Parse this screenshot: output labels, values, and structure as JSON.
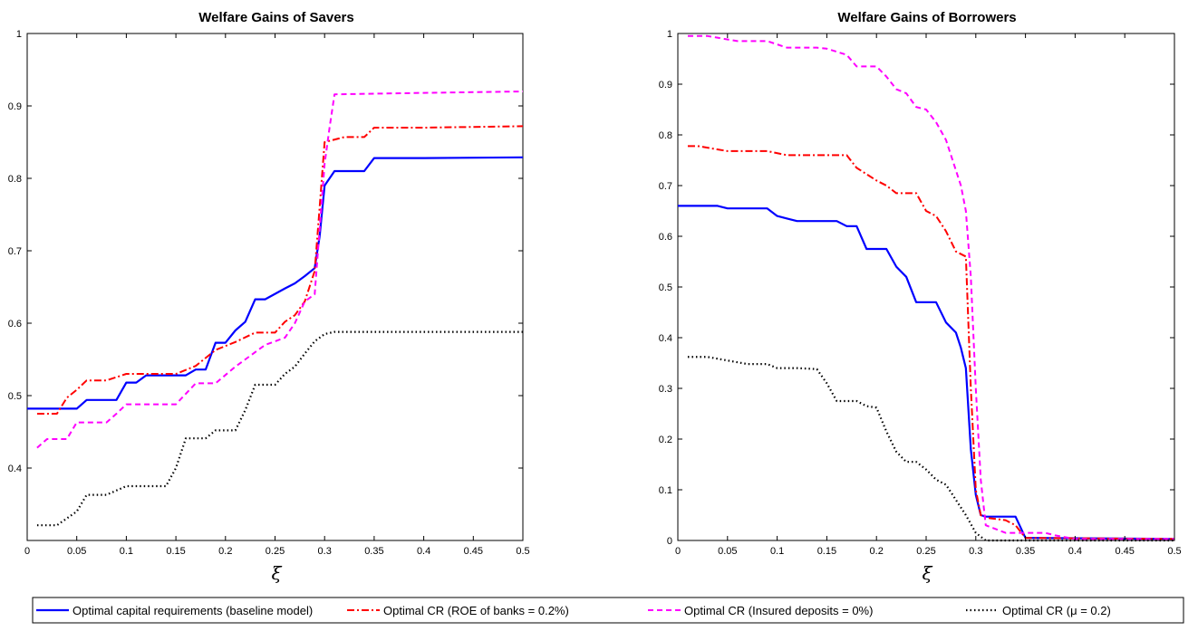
{
  "legend": [
    {
      "label": "Optimal capital requirements (baseline model)",
      "color": "#0000ff",
      "dash": "solid"
    },
    {
      "label": "Optimal CR (ROE of banks = 0.2%)",
      "color": "#ff0000",
      "dash": "dashdot"
    },
    {
      "label": "Optimal CR (Insured deposits = 0%)",
      "color": "#ff00ff",
      "dash": "dashed"
    },
    {
      "label": "Optimal CR (μ = 0.2)",
      "color": "#000000",
      "dash": "dotted"
    }
  ],
  "chart_data": [
    {
      "type": "line",
      "title": "Welfare Gains of Savers",
      "xlabel": "ξ",
      "ylabel": "",
      "xlim": [
        0,
        0.5
      ],
      "ylim": [
        0.3,
        1.0
      ],
      "xticks": [
        "0",
        "0.05",
        "0.1",
        "0.15",
        "0.2",
        "0.25",
        "0.3",
        "0.35",
        "0.4",
        "0.45",
        "0.5"
      ],
      "yticks": [
        "0.4",
        "0.5",
        "0.6",
        "0.7",
        "0.8",
        "0.9",
        "1"
      ],
      "grid": false,
      "series": [
        {
          "name": "Optimal capital requirements (baseline model)",
          "color": "#0000ff",
          "dash": "solid",
          "width": 2.2,
          "x": [
            0,
            0.05,
            0.06,
            0.09,
            0.1,
            0.11,
            0.12,
            0.16,
            0.17,
            0.18,
            0.19,
            0.2,
            0.21,
            0.22,
            0.23,
            0.24,
            0.26,
            0.27,
            0.28,
            0.29,
            0.295,
            0.3,
            0.31,
            0.34,
            0.35,
            0.4,
            0.5
          ],
          "y": [
            0.482,
            0.482,
            0.494,
            0.494,
            0.518,
            0.518,
            0.528,
            0.528,
            0.536,
            0.536,
            0.573,
            0.573,
            0.59,
            0.602,
            0.633,
            0.633,
            0.648,
            0.655,
            0.665,
            0.676,
            0.72,
            0.79,
            0.81,
            0.81,
            0.828,
            0.828,
            0.829
          ]
        },
        {
          "name": "Optimal CR (ROE of banks = 0.2%)",
          "color": "#ff0000",
          "dash": "dashdot",
          "width": 2.0,
          "x": [
            0.01,
            0.03,
            0.04,
            0.05,
            0.06,
            0.08,
            0.1,
            0.12,
            0.15,
            0.17,
            0.19,
            0.21,
            0.23,
            0.25,
            0.26,
            0.27,
            0.28,
            0.29,
            0.295,
            0.3,
            0.32,
            0.34,
            0.35,
            0.4,
            0.5
          ],
          "y": [
            0.475,
            0.475,
            0.497,
            0.508,
            0.521,
            0.521,
            0.53,
            0.53,
            0.53,
            0.541,
            0.563,
            0.574,
            0.587,
            0.587,
            0.602,
            0.611,
            0.63,
            0.672,
            0.76,
            0.85,
            0.857,
            0.857,
            0.87,
            0.87,
            0.872
          ]
        },
        {
          "name": "Optimal CR (Insured deposits = 0%)",
          "color": "#ff00ff",
          "dash": "dashed",
          "width": 2.0,
          "x": [
            0.01,
            0.02,
            0.04,
            0.05,
            0.06,
            0.08,
            0.09,
            0.1,
            0.13,
            0.15,
            0.17,
            0.19,
            0.21,
            0.22,
            0.24,
            0.26,
            0.27,
            0.28,
            0.29,
            0.3,
            0.305,
            0.31,
            0.4,
            0.5
          ],
          "y": [
            0.428,
            0.44,
            0.44,
            0.463,
            0.463,
            0.463,
            0.475,
            0.488,
            0.488,
            0.488,
            0.517,
            0.517,
            0.54,
            0.55,
            0.57,
            0.58,
            0.6,
            0.63,
            0.64,
            0.82,
            0.87,
            0.916,
            0.918,
            0.92
          ]
        },
        {
          "name": "Optimal CR (μ = 0.2)",
          "color": "#000000",
          "dash": "dotted",
          "width": 2.2,
          "x": [
            0.01,
            0.03,
            0.05,
            0.06,
            0.08,
            0.1,
            0.11,
            0.13,
            0.14,
            0.15,
            0.16,
            0.18,
            0.19,
            0.21,
            0.22,
            0.23,
            0.24,
            0.25,
            0.26,
            0.27,
            0.28,
            0.29,
            0.3,
            0.31,
            0.5
          ],
          "y": [
            0.321,
            0.321,
            0.34,
            0.363,
            0.363,
            0.375,
            0.375,
            0.375,
            0.375,
            0.4,
            0.441,
            0.441,
            0.452,
            0.452,
            0.48,
            0.515,
            0.515,
            0.515,
            0.53,
            0.54,
            0.558,
            0.575,
            0.585,
            0.588,
            0.588
          ]
        }
      ]
    },
    {
      "type": "line",
      "title": "Welfare Gains of Borrowers",
      "xlabel": "ξ",
      "ylabel": "",
      "xlim": [
        0,
        0.5
      ],
      "ylim": [
        0,
        1.0
      ],
      "xticks": [
        "0",
        "0.05",
        "0.1",
        "0.15",
        "0.2",
        "0.25",
        "0.3",
        "0.35",
        "0.4",
        "0.45",
        "0.5"
      ],
      "yticks": [
        "0",
        "0.1",
        "0.2",
        "0.3",
        "0.4",
        "0.5",
        "0.6",
        "0.7",
        "0.8",
        "0.9",
        "1"
      ],
      "grid": false,
      "series": [
        {
          "name": "Optimal capital requirements (baseline model)",
          "color": "#0000ff",
          "dash": "solid",
          "width": 2.2,
          "x": [
            0,
            0.04,
            0.05,
            0.09,
            0.1,
            0.11,
            0.12,
            0.16,
            0.17,
            0.18,
            0.19,
            0.21,
            0.22,
            0.23,
            0.24,
            0.26,
            0.27,
            0.28,
            0.285,
            0.29,
            0.295,
            0.3,
            0.305,
            0.31,
            0.34,
            0.35,
            0.5
          ],
          "y": [
            0.66,
            0.66,
            0.655,
            0.655,
            0.64,
            0.635,
            0.63,
            0.63,
            0.62,
            0.62,
            0.575,
            0.575,
            0.54,
            0.52,
            0.47,
            0.47,
            0.43,
            0.41,
            0.38,
            0.34,
            0.18,
            0.09,
            0.05,
            0.047,
            0.047,
            0.005,
            0.003
          ]
        },
        {
          "name": "Optimal CR (ROE of banks = 0.2%)",
          "color": "#ff0000",
          "dash": "dashdot",
          "width": 2.0,
          "x": [
            0.01,
            0.02,
            0.05,
            0.09,
            0.11,
            0.15,
            0.17,
            0.18,
            0.2,
            0.21,
            0.22,
            0.24,
            0.25,
            0.26,
            0.27,
            0.28,
            0.29,
            0.295,
            0.3,
            0.305,
            0.31,
            0.33,
            0.34,
            0.35,
            0.5
          ],
          "y": [
            0.778,
            0.778,
            0.768,
            0.768,
            0.76,
            0.76,
            0.76,
            0.735,
            0.71,
            0.7,
            0.685,
            0.685,
            0.65,
            0.64,
            0.61,
            0.57,
            0.56,
            0.3,
            0.1,
            0.05,
            0.045,
            0.04,
            0.03,
            0.005,
            0.003
          ]
        },
        {
          "name": "Optimal CR (Insured deposits = 0%)",
          "color": "#ff00ff",
          "dash": "dashed",
          "width": 2.0,
          "x": [
            0.01,
            0.03,
            0.06,
            0.09,
            0.11,
            0.14,
            0.15,
            0.17,
            0.18,
            0.2,
            0.21,
            0.22,
            0.23,
            0.24,
            0.25,
            0.26,
            0.27,
            0.28,
            0.285,
            0.29,
            0.295,
            0.3,
            0.305,
            0.31,
            0.33,
            0.37,
            0.38,
            0.4,
            0.5
          ],
          "y": [
            0.995,
            0.995,
            0.985,
            0.985,
            0.972,
            0.972,
            0.97,
            0.958,
            0.935,
            0.935,
            0.915,
            0.89,
            0.882,
            0.855,
            0.85,
            0.825,
            0.79,
            0.73,
            0.7,
            0.65,
            0.52,
            0.3,
            0.12,
            0.03,
            0.015,
            0.015,
            0.01,
            0.003,
            0.003
          ]
        },
        {
          "name": "Optimal CR (μ = 0.2)",
          "color": "#000000",
          "dash": "dotted",
          "width": 2.2,
          "x": [
            0.01,
            0.03,
            0.05,
            0.07,
            0.09,
            0.1,
            0.12,
            0.14,
            0.15,
            0.16,
            0.18,
            0.19,
            0.2,
            0.21,
            0.22,
            0.23,
            0.24,
            0.25,
            0.26,
            0.27,
            0.28,
            0.29,
            0.3,
            0.31,
            0.5
          ],
          "y": [
            0.362,
            0.362,
            0.355,
            0.348,
            0.348,
            0.34,
            0.34,
            0.338,
            0.31,
            0.275,
            0.275,
            0.265,
            0.262,
            0.215,
            0.175,
            0.155,
            0.155,
            0.14,
            0.12,
            0.11,
            0.08,
            0.05,
            0.015,
            0.0,
            0.0
          ]
        }
      ]
    }
  ]
}
